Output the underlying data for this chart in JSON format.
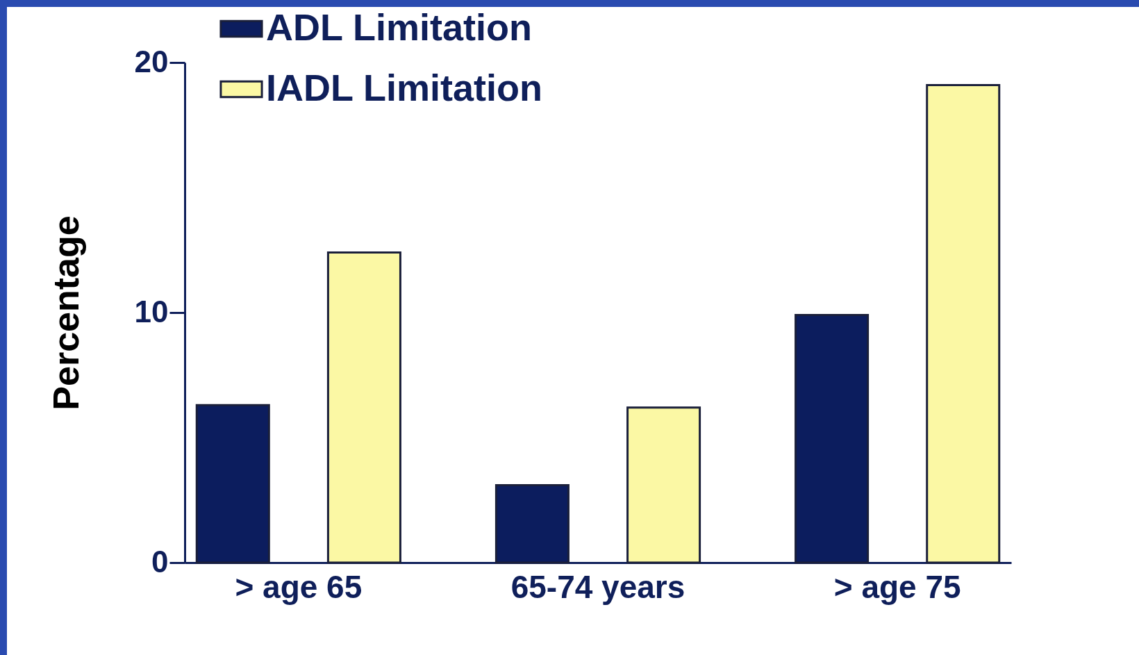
{
  "chart_data": {
    "type": "bar",
    "ylabel": "Percentage",
    "categories": [
      "> age 65",
      "65-74 years",
      "> age 75"
    ],
    "series": [
      {
        "name": "ADL Limitation",
        "color": "#0c1d5e",
        "values": [
          6.3,
          3.1,
          9.9
        ]
      },
      {
        "name": "IADL Limitation",
        "color": "#fbf8a4",
        "values": [
          12.4,
          6.2,
          19.1
        ]
      }
    ],
    "ylim": [
      0,
      20
    ],
    "yticks": [
      0,
      10,
      20
    ],
    "grid": false,
    "legend": "top left"
  }
}
